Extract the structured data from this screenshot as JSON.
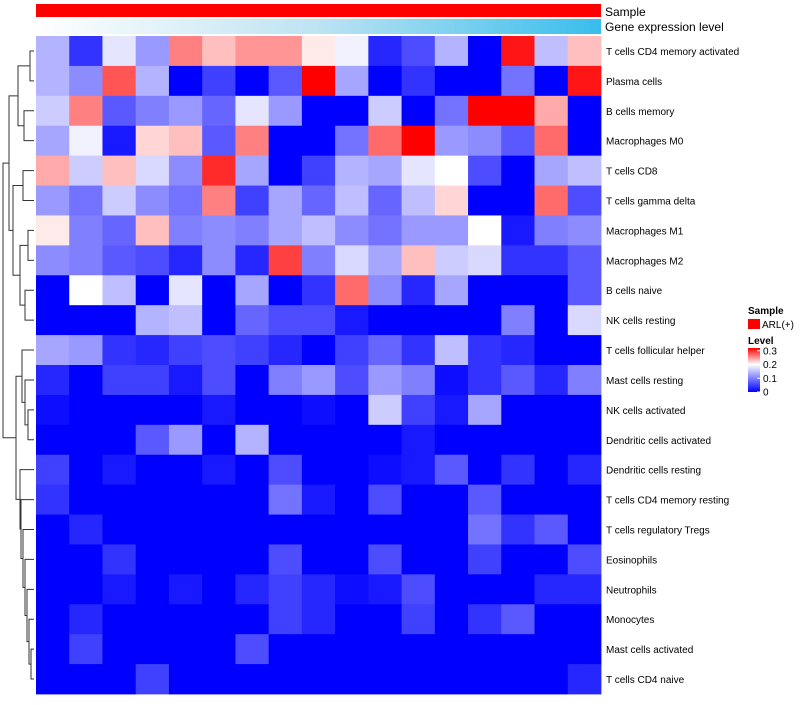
{
  "chart_data": {
    "type": "heatmap",
    "title": "",
    "annotation_tracks": [
      {
        "name": "Sample",
        "style": "solid",
        "color": "#ff0000",
        "legend_label": "ARL(+)"
      },
      {
        "name": "Gene expression level",
        "style": "gradient",
        "colors": [
          "#ffffff",
          "#bde3f2",
          "#38bdec"
        ]
      }
    ],
    "legends": {
      "sample": {
        "title": "Sample",
        "label": "ARL(+)",
        "color": "#ff0000"
      },
      "level": {
        "title": "Level",
        "ticks": [
          "0.3",
          "0.2",
          "0.1",
          "0"
        ],
        "tick_values": [
          0.3,
          0.2,
          0.1,
          0
        ],
        "range": [
          0,
          0.32
        ]
      }
    },
    "color_scale": {
      "low": "#0000ff",
      "mid": "#ffffff",
      "high": "#ff0000",
      "min": 0,
      "mid_value": 0.2,
      "max": 0.32
    },
    "n_columns": 17,
    "rows": [
      "T cells CD4 memory activated",
      "Plasma cells",
      "B cells memory",
      "Macrophages M0",
      "T cells CD8",
      "T cells gamma delta",
      "Macrophages M1",
      "Macrophages M2",
      "B cells naive",
      "NK cells resting",
      "T cells follicular helper",
      "Mast cells resting",
      "NK cells activated",
      "Dendritic cells activated",
      "Dendritic cells resting",
      "T cells CD4 memory resting",
      "T cells regulatory  Tregs",
      "Eosinophils",
      "Neutrophils",
      "Monocytes",
      "Mast cells activated",
      "T cells CD4 naive"
    ],
    "values": [
      [
        0.14,
        0.04,
        0.18,
        0.12,
        0.26,
        0.23,
        0.25,
        0.25,
        0.21,
        0.19,
        0.03,
        0.06,
        0.14,
        0.0,
        0.31,
        0.15,
        0.23
      ],
      [
        0.14,
        0.11,
        0.28,
        0.14,
        0.0,
        0.05,
        0.0,
        0.07,
        0.32,
        0.13,
        0.0,
        0.04,
        0.0,
        0.0,
        0.09,
        0.0,
        0.31
      ],
      [
        0.16,
        0.26,
        0.07,
        0.1,
        0.12,
        0.08,
        0.18,
        0.12,
        0.0,
        0.0,
        0.16,
        0.0,
        0.09,
        0.32,
        0.32,
        0.24,
        0.0
      ],
      [
        0.13,
        0.19,
        0.02,
        0.22,
        0.23,
        0.07,
        0.26,
        0.0,
        0.0,
        0.09,
        0.27,
        0.32,
        0.12,
        0.11,
        0.07,
        0.27,
        0.0
      ],
      [
        0.24,
        0.16,
        0.23,
        0.17,
        0.11,
        0.3,
        0.13,
        0.0,
        0.05,
        0.14,
        0.13,
        0.18,
        0.2,
        0.06,
        0.0,
        0.13,
        0.15
      ],
      [
        0.12,
        0.09,
        0.16,
        0.11,
        0.09,
        0.26,
        0.05,
        0.13,
        0.08,
        0.15,
        0.08,
        0.15,
        0.22,
        0.0,
        0.0,
        0.27,
        0.06
      ],
      [
        0.21,
        0.1,
        0.08,
        0.23,
        0.1,
        0.11,
        0.1,
        0.13,
        0.15,
        0.11,
        0.09,
        0.12,
        0.12,
        0.2,
        0.02,
        0.1,
        0.11
      ],
      [
        0.11,
        0.1,
        0.07,
        0.06,
        0.03,
        0.11,
        0.03,
        0.29,
        0.1,
        0.17,
        0.13,
        0.23,
        0.16,
        0.17,
        0.04,
        0.04,
        0.07
      ],
      [
        0.0,
        0.2,
        0.15,
        0.0,
        0.18,
        0.0,
        0.13,
        0.0,
        0.04,
        0.27,
        0.11,
        0.03,
        0.13,
        0.0,
        0.0,
        0.0,
        0.07
      ],
      [
        0.0,
        0.0,
        0.0,
        0.14,
        0.15,
        0.0,
        0.08,
        0.06,
        0.06,
        0.02,
        0.0,
        0.0,
        0.0,
        0.0,
        0.1,
        0.0,
        0.17
      ],
      [
        0.13,
        0.12,
        0.04,
        0.03,
        0.05,
        0.06,
        0.05,
        0.03,
        0.0,
        0.05,
        0.08,
        0.04,
        0.15,
        0.04,
        0.03,
        0.0,
        0.0
      ],
      [
        0.03,
        0.0,
        0.05,
        0.05,
        0.02,
        0.06,
        0.0,
        0.1,
        0.12,
        0.06,
        0.12,
        0.1,
        0.01,
        0.04,
        0.07,
        0.03,
        0.1
      ],
      [
        0.01,
        0.0,
        0.0,
        0.0,
        0.0,
        0.02,
        0.0,
        0.0,
        0.01,
        0.0,
        0.16,
        0.05,
        0.02,
        0.13,
        0.0,
        0.0,
        0.0
      ],
      [
        0.0,
        0.0,
        0.0,
        0.07,
        0.12,
        0.0,
        0.14,
        0.0,
        0.0,
        0.0,
        0.0,
        0.02,
        0.0,
        0.0,
        0.0,
        0.0,
        0.0
      ],
      [
        0.05,
        0.0,
        0.02,
        0.0,
        0.0,
        0.02,
        0.0,
        0.06,
        0.0,
        0.0,
        0.01,
        0.02,
        0.07,
        0.0,
        0.04,
        0.0,
        0.03
      ],
      [
        0.04,
        0.0,
        0.0,
        0.0,
        0.0,
        0.0,
        0.0,
        0.09,
        0.02,
        0.0,
        0.06,
        0.0,
        0.0,
        0.07,
        0.0,
        0.0,
        0.0
      ],
      [
        0.0,
        0.03,
        0.0,
        0.0,
        0.0,
        0.0,
        0.0,
        0.0,
        0.0,
        0.0,
        0.0,
        0.0,
        0.0,
        0.09,
        0.04,
        0.07,
        0.0
      ],
      [
        0.0,
        0.0,
        0.04,
        0.0,
        0.0,
        0.0,
        0.0,
        0.06,
        0.0,
        0.0,
        0.06,
        0.0,
        0.0,
        0.05,
        0.0,
        0.0,
        0.06
      ],
      [
        0.0,
        0.0,
        0.02,
        0.0,
        0.02,
        0.0,
        0.03,
        0.05,
        0.03,
        0.01,
        0.02,
        0.06,
        0.0,
        0.0,
        0.0,
        0.03,
        0.03
      ],
      [
        0.0,
        0.03,
        0.0,
        0.0,
        0.0,
        0.0,
        0.0,
        0.05,
        0.03,
        0.0,
        0.0,
        0.05,
        0.0,
        0.04,
        0.07,
        0.0,
        0.0
      ],
      [
        0.0,
        0.05,
        0.0,
        0.0,
        0.0,
        0.0,
        0.06,
        0.0,
        0.0,
        0.0,
        0.0,
        0.0,
        0.0,
        0.0,
        0.0,
        0.0,
        0.0
      ],
      [
        0.0,
        0.0,
        0.0,
        0.05,
        0.0,
        0.0,
        0.0,
        0.0,
        0.0,
        0.0,
        0.0,
        0.0,
        0.0,
        0.0,
        0.0,
        0.0,
        0.03
      ]
    ]
  }
}
